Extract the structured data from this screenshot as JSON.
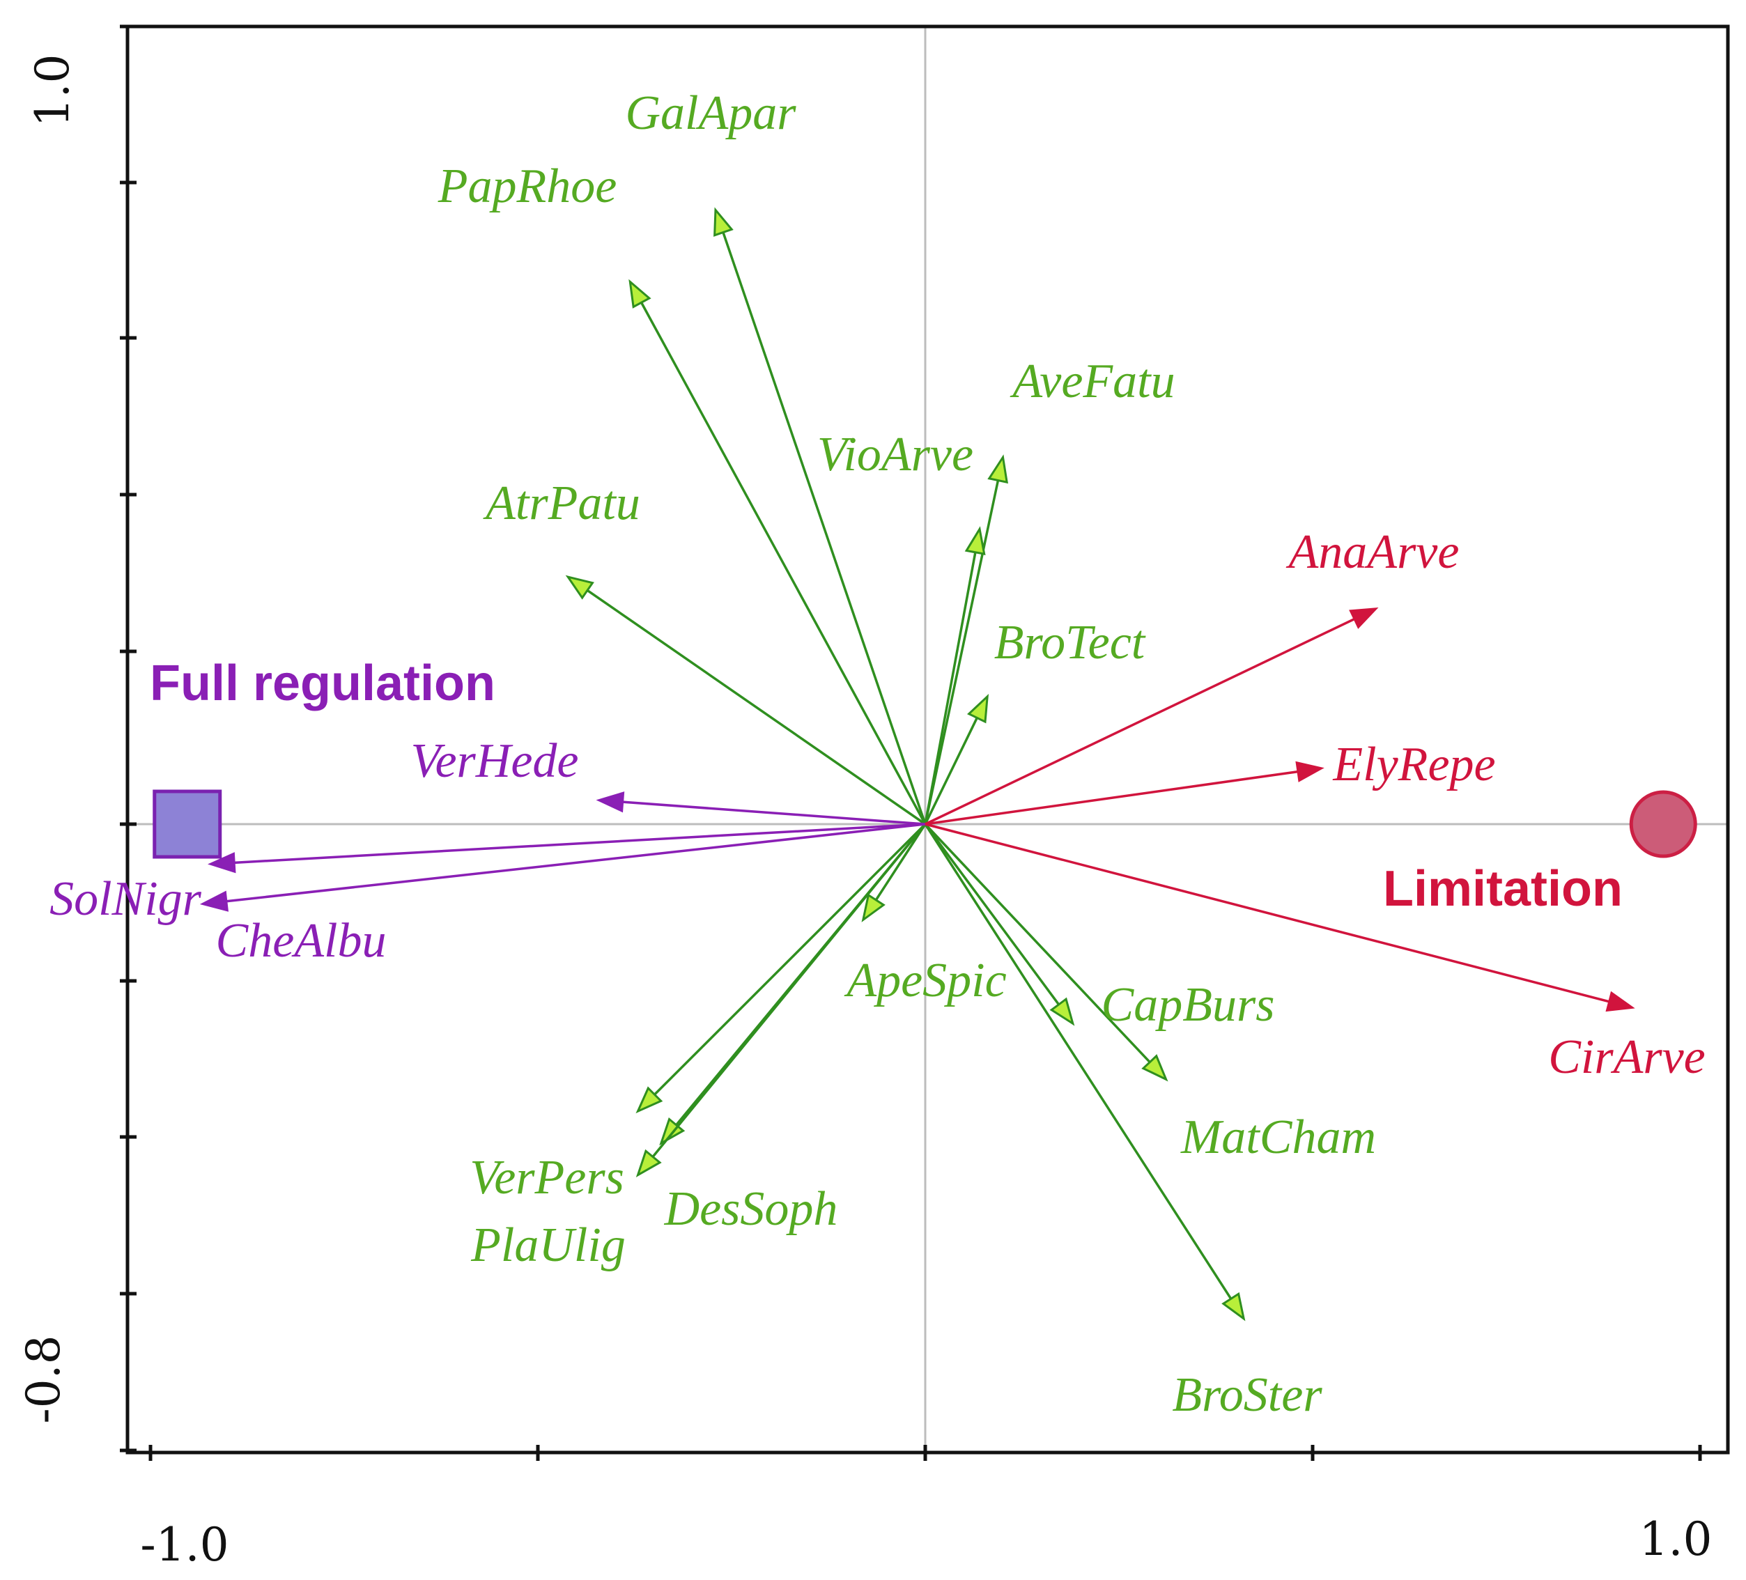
{
  "chart_data": {
    "type": "scatter",
    "subtype": "ordination-biplot",
    "title": "",
    "xlabel": "",
    "ylabel": "",
    "xlim": [
      -1.0,
      1.0
    ],
    "ylim": [
      -0.8,
      1.0
    ],
    "x_tick_labels": [
      "-1.0",
      "1.0"
    ],
    "y_tick_labels": [
      "-0.8",
      "1.0"
    ],
    "grid": false,
    "zero_lines": true,
    "colors": {
      "Full regulation": "#8a1fb5",
      "Limitation": "#d1143d",
      "neutral": "#2f8f1f",
      "neutral_label": "#55aa22",
      "neutral_arrowhead": "#b8ef3a",
      "frame": "#111111",
      "zero_line": "#bdbdbd"
    },
    "environmental_variables": [
      {
        "name": "Full regulation",
        "x": -0.95,
        "y": 0.0,
        "marker": "square",
        "fill": "#8d82d6",
        "stroke": "#7a22b0"
      },
      {
        "name": "Limitation",
        "x": 0.95,
        "y": 0.0,
        "marker": "circle",
        "fill": "#cc5c78",
        "stroke": "#cc1f44"
      }
    ],
    "species": [
      {
        "name": "GalApar",
        "x": -0.27,
        "y": 0.77,
        "group": "neutral"
      },
      {
        "name": "PapRhoe",
        "x": -0.38,
        "y": 0.68,
        "group": "neutral"
      },
      {
        "name": "AveFatu",
        "x": 0.1,
        "y": 0.46,
        "group": "neutral"
      },
      {
        "name": "VioArve",
        "x": 0.07,
        "y": 0.37,
        "group": "neutral"
      },
      {
        "name": "AtrPatu",
        "x": -0.46,
        "y": 0.31,
        "group": "neutral"
      },
      {
        "name": "BroTect",
        "x": 0.08,
        "y": 0.16,
        "group": "neutral"
      },
      {
        "name": "ApeSpic",
        "x": -0.08,
        "y": -0.12,
        "group": "neutral"
      },
      {
        "name": "CapBurs",
        "x": 0.19,
        "y": -0.25,
        "group": "neutral"
      },
      {
        "name": "MatCham",
        "x": 0.31,
        "y": -0.32,
        "group": "neutral"
      },
      {
        "name": "BroSter",
        "x": 0.41,
        "y": -0.62,
        "group": "neutral"
      },
      {
        "name": "VerPers",
        "x": -0.37,
        "y": -0.36,
        "group": "neutral"
      },
      {
        "name": "DesSoph",
        "x": -0.34,
        "y": -0.4,
        "group": "neutral"
      },
      {
        "name": "PlaUlig",
        "x": -0.37,
        "y": -0.44,
        "group": "neutral"
      },
      {
        "name": "VerHede",
        "x": -0.42,
        "y": 0.03,
        "group": "Full regulation"
      },
      {
        "name": "SolNigr",
        "x": -0.92,
        "y": -0.05,
        "group": "Full regulation"
      },
      {
        "name": "CheAlbu",
        "x": -0.93,
        "y": -0.1,
        "group": "Full regulation"
      },
      {
        "name": "AnaArve",
        "x": 0.58,
        "y": 0.27,
        "group": "Limitation"
      },
      {
        "name": "ElyRepe",
        "x": 0.51,
        "y": 0.07,
        "group": "Limitation"
      },
      {
        "name": "CirArve",
        "x": 0.91,
        "y": -0.23,
        "group": "Limitation"
      }
    ]
  }
}
